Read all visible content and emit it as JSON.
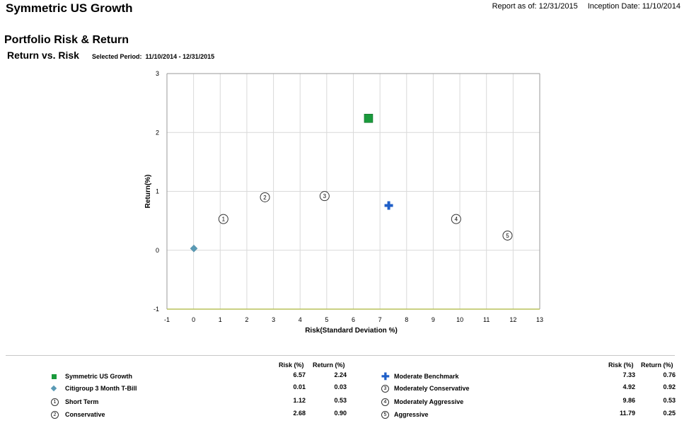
{
  "header": {
    "fund_name": "Symmetric US Growth",
    "report_as_of": "Report as of: 12/31/2015",
    "inception_date": "Inception Date: 11/10/2014"
  },
  "section_title": "Portfolio Risk & Return",
  "chart_heading": "Return vs. Risk",
  "selected_period_label": "Selected Period:",
  "selected_period_value": "11/10/2014  -  12/31/2015",
  "chart_data": {
    "type": "scatter",
    "xlabel": "Risk(Standard Deviation %)",
    "ylabel": "Return(%)",
    "xlim": [
      -1,
      13
    ],
    "ylim": [
      -1,
      3
    ],
    "x_ticks": [
      -1,
      0,
      1,
      2,
      3,
      4,
      5,
      6,
      7,
      8,
      9,
      10,
      11,
      12,
      13
    ],
    "y_ticks": [
      -1,
      0,
      1,
      2,
      3
    ],
    "grid": true,
    "points": [
      {
        "name": "Symmetric US Growth",
        "marker": "square",
        "color": "#1a9a3c",
        "risk": 6.57,
        "return": 2.24
      },
      {
        "name": "Citigroup 3 Month T-Bill",
        "marker": "diamond",
        "color": "#5a9ab5",
        "risk": 0.01,
        "return": 0.03
      },
      {
        "name": "Short Term",
        "marker": "circle-1",
        "label": "1",
        "risk": 1.12,
        "return": 0.53
      },
      {
        "name": "Conservative",
        "marker": "circle-2",
        "label": "2",
        "risk": 2.68,
        "return": 0.9
      },
      {
        "name": "Moderate Benchmark",
        "marker": "plus",
        "color": "#1f5fc8",
        "risk": 7.33,
        "return": 0.76
      },
      {
        "name": "Moderately Conservative",
        "marker": "circle-3",
        "label": "3",
        "risk": 4.92,
        "return": 0.92
      },
      {
        "name": "Moderately Aggressive",
        "marker": "circle-4",
        "label": "4",
        "risk": 9.86,
        "return": 0.53
      },
      {
        "name": "Aggressive",
        "marker": "circle-5",
        "label": "5",
        "risk": 11.79,
        "return": 0.25
      }
    ]
  },
  "legend": {
    "risk_header": "Risk (%)",
    "return_header": "Return (%)",
    "left": [
      {
        "name": "Symmetric US Growth",
        "icon": "green-square-icon",
        "risk": "6.57",
        "return": "2.24"
      },
      {
        "name": "Citigroup 3 Month T-Bill",
        "icon": "blue-diamond-icon",
        "risk": "0.01",
        "return": "0.03"
      },
      {
        "name": "Short Term",
        "icon": "circle-1-icon",
        "glyph": "1",
        "risk": "1.12",
        "return": "0.53"
      },
      {
        "name": "Conservative",
        "icon": "circle-2-icon",
        "glyph": "2",
        "risk": "2.68",
        "return": "0.90"
      }
    ],
    "right": [
      {
        "name": "Moderate Benchmark",
        "icon": "blue-plus-icon",
        "risk": "7.33",
        "return": "0.76"
      },
      {
        "name": "Moderately Conservative",
        "icon": "circle-3-icon",
        "glyph": "3",
        "risk": "4.92",
        "return": "0.92"
      },
      {
        "name": "Moderately Aggressive",
        "icon": "circle-4-icon",
        "glyph": "4",
        "risk": "9.86",
        "return": "0.53"
      },
      {
        "name": "Aggressive",
        "icon": "circle-5-icon",
        "glyph": "5",
        "risk": "11.79",
        "return": "0.25"
      }
    ]
  }
}
